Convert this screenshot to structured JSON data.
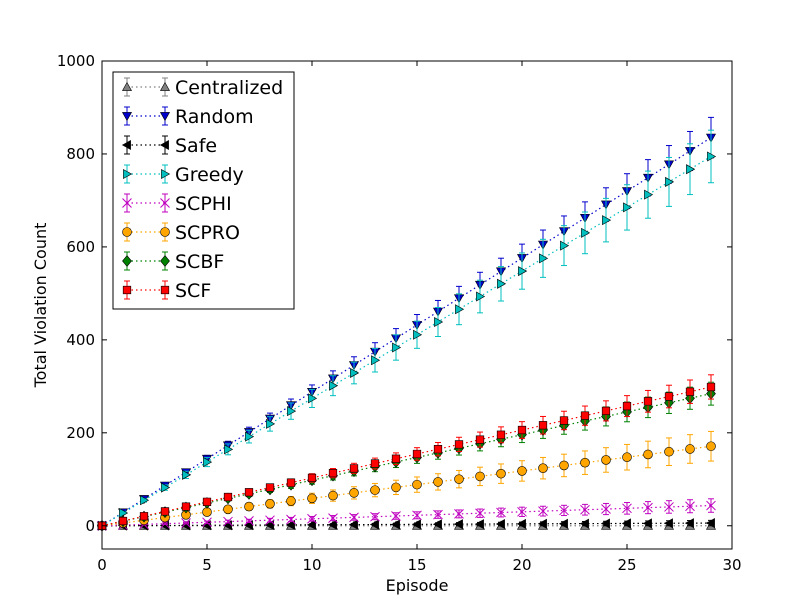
{
  "chart_data": {
    "type": "line",
    "xlabel": "Episode",
    "ylabel": "Total Violation Count",
    "xlim": [
      0,
      30
    ],
    "ylim": [
      -50,
      1000
    ],
    "xticks": [
      0,
      5,
      10,
      15,
      20,
      25,
      30
    ],
    "yticks": [
      0,
      200,
      400,
      600,
      800,
      1000
    ],
    "grid": false,
    "legend_position": "top-left",
    "x": [
      0,
      1,
      2,
      3,
      4,
      5,
      6,
      7,
      8,
      9,
      10,
      11,
      12,
      13,
      14,
      15,
      16,
      17,
      18,
      19,
      20,
      21,
      22,
      23,
      24,
      25,
      26,
      27,
      28,
      29
    ],
    "series": [
      {
        "name": "Centralized",
        "color": "#808080",
        "marker": "triangle-up",
        "slope": 0,
        "err_slope": 0
      },
      {
        "name": "Random",
        "color": "#0000cc",
        "marker": "triangle-down",
        "slope": 28.8,
        "err_slope": 1.5
      },
      {
        "name": "Safe",
        "color": "#000000",
        "marker": "triangle-left",
        "slope": 0.2,
        "err_slope": 0.2
      },
      {
        "name": "Greedy",
        "color": "#00bfbf",
        "marker": "triangle-right",
        "slope": 27.4,
        "err_slope": 1.95
      },
      {
        "name": "SCPHI",
        "color": "#bf00bf",
        "marker": "x",
        "slope": 1.5,
        "err_slope": 0.5
      },
      {
        "name": "SCPRO",
        "color": "#ffa500",
        "marker": "circle",
        "slope": 5.9,
        "err_slope": 1.1
      },
      {
        "name": "SCBF",
        "color": "#008000",
        "marker": "diamond",
        "slope": 9.8,
        "err_slope": 0.85
      },
      {
        "name": "SCF",
        "color": "#ff0000",
        "marker": "square",
        "slope": 10.3,
        "err_slope": 0.9
      }
    ]
  }
}
